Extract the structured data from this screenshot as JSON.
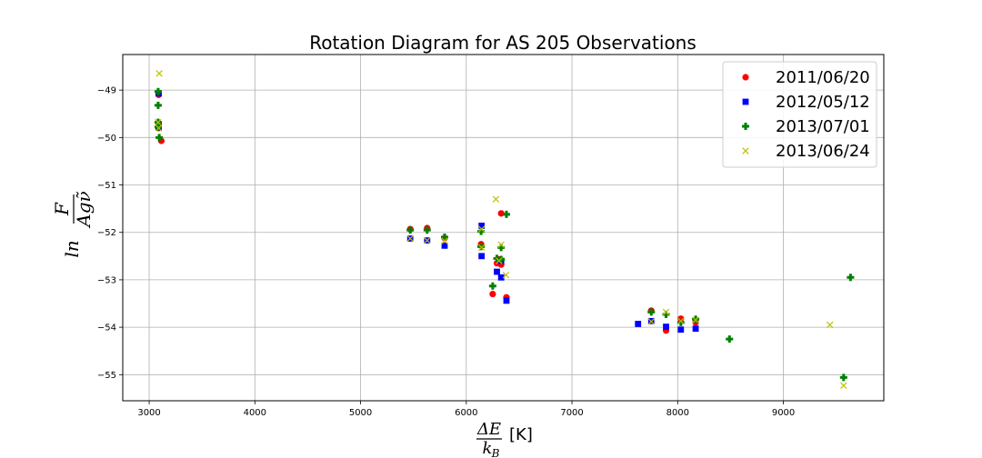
{
  "chart_data": {
    "type": "scatter",
    "title": "Rotation Diagram for AS 205 Observations",
    "xlabel_frac_num": "ΔE",
    "xlabel_frac_den": "k",
    "xlabel_frac_den_sub": "B",
    "xlabel_unit": "[K]",
    "ylabel_prefix": "ln",
    "ylabel_frac_num": "F",
    "ylabel_frac_den": "Agν̃",
    "xlim": [
      2750,
      9950
    ],
    "ylim": [
      -55.55,
      -48.25
    ],
    "xticks": [
      3000,
      4000,
      5000,
      6000,
      7000,
      8000,
      9000
    ],
    "yticks": [
      -49,
      -50,
      -51,
      -52,
      -53,
      -54,
      -55
    ],
    "xtick_labels": [
      "3000",
      "4000",
      "5000",
      "6000",
      "7000",
      "8000",
      "9000"
    ],
    "ytick_labels": [
      "−49",
      "−50",
      "−51",
      "−52",
      "−53",
      "−54",
      "−55"
    ],
    "grid": true,
    "legend_position": "top-right",
    "series": [
      {
        "name": "2011/06/20",
        "color": "#ff0000",
        "marker": "circle",
        "points": [
          [
            3090,
            -49.1
          ],
          [
            3090,
            -49.7
          ],
          [
            3090,
            -49.75
          ],
          [
            3090,
            -49.8
          ],
          [
            3115,
            -50.07
          ],
          [
            5470,
            -51.93
          ],
          [
            5630,
            -51.91
          ],
          [
            5795,
            -52.12
          ],
          [
            6140,
            -52.25
          ],
          [
            6250,
            -53.3
          ],
          [
            6290,
            -52.65
          ],
          [
            6310,
            -52.57
          ],
          [
            6330,
            -52.68
          ],
          [
            6330,
            -51.6
          ],
          [
            6380,
            -53.37
          ],
          [
            7750,
            -53.65
          ],
          [
            7890,
            -54.07
          ],
          [
            8030,
            -53.82
          ],
          [
            8170,
            -53.9
          ]
        ]
      },
      {
        "name": "2012/05/12",
        "color": "#0000ff",
        "marker": "square",
        "points": [
          [
            3090,
            -49.07
          ],
          [
            3090,
            -49.72
          ],
          [
            3090,
            -49.78
          ],
          [
            5470,
            -52.13
          ],
          [
            5630,
            -52.17
          ],
          [
            5795,
            -52.28
          ],
          [
            6145,
            -51.86
          ],
          [
            6145,
            -52.5
          ],
          [
            6290,
            -52.83
          ],
          [
            6330,
            -52.6
          ],
          [
            6330,
            -52.95
          ],
          [
            6380,
            -53.44
          ],
          [
            7625,
            -53.93
          ],
          [
            7750,
            -53.87
          ],
          [
            7890,
            -53.99
          ],
          [
            8030,
            -54.05
          ],
          [
            8170,
            -54.03
          ]
        ]
      },
      {
        "name": "2013/07/01",
        "color": "#008000",
        "marker": "plus",
        "points": [
          [
            3085,
            -49.03
          ],
          [
            3085,
            -49.32
          ],
          [
            3085,
            -49.68
          ],
          [
            3085,
            -49.78
          ],
          [
            3095,
            -50.0
          ],
          [
            5470,
            -51.95
          ],
          [
            5630,
            -51.95
          ],
          [
            5795,
            -52.1
          ],
          [
            6140,
            -51.98
          ],
          [
            6140,
            -52.3
          ],
          [
            6250,
            -53.13
          ],
          [
            6290,
            -52.55
          ],
          [
            6330,
            -52.32
          ],
          [
            6330,
            -52.57
          ],
          [
            6380,
            -51.62
          ],
          [
            7750,
            -53.68
          ],
          [
            7890,
            -53.73
          ],
          [
            8030,
            -53.9
          ],
          [
            8170,
            -53.83
          ],
          [
            8490,
            -54.25
          ],
          [
            9570,
            -55.06
          ],
          [
            9635,
            -52.95
          ]
        ]
      },
      {
        "name": "2013/06/24",
        "color": "#bfbf00",
        "marker": "x",
        "points": [
          [
            3095,
            -48.65
          ],
          [
            3085,
            -49.68
          ],
          [
            3090,
            -49.8
          ],
          [
            5470,
            -52.13
          ],
          [
            5630,
            -52.17
          ],
          [
            5795,
            -52.18
          ],
          [
            6145,
            -51.93
          ],
          [
            6145,
            -52.32
          ],
          [
            6280,
            -51.3
          ],
          [
            6310,
            -52.6
          ],
          [
            6330,
            -52.26
          ],
          [
            6375,
            -52.9
          ],
          [
            7750,
            -53.88
          ],
          [
            7890,
            -53.68
          ],
          [
            8030,
            -53.87
          ],
          [
            8170,
            -53.85
          ],
          [
            9440,
            -53.95
          ],
          [
            9570,
            -55.23
          ]
        ]
      }
    ]
  }
}
